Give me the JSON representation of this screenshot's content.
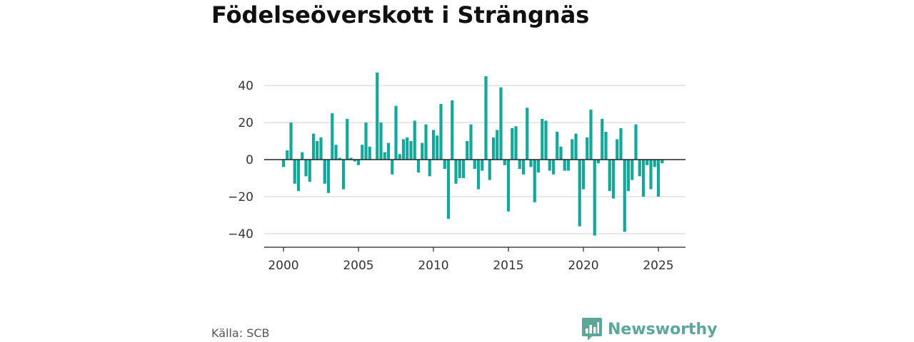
{
  "title": "Födelseöverskott i Strängnäs",
  "source": "Källa: SCB",
  "brand": {
    "name": "Newsworthy",
    "icon": "bar-chart-speech-bubble-icon",
    "color": "#5ba89a"
  },
  "chart_data": {
    "type": "bar",
    "title": "Födelseöverskott i Strängnäs",
    "xlabel": "",
    "ylabel": "",
    "x_range": [
      1999.3,
      2026.7
    ],
    "ylim": [
      -47,
      50
    ],
    "x_ticks": [
      2000,
      2005,
      2010,
      2015,
      2020,
      2025
    ],
    "y_ticks": [
      40,
      20,
      0,
      -20,
      -40
    ],
    "y_tick_labels": [
      "40",
      "20",
      "0",
      "−20",
      "−40"
    ],
    "grid": "horizontal",
    "bar_color": "#14a89b",
    "series": [
      {
        "x": [
          2000.0,
          2000.25,
          2000.5,
          2000.75,
          2001.0,
          2001.25,
          2001.5,
          2001.75,
          2002.0,
          2002.25,
          2002.5,
          2002.75,
          2003.0,
          2003.25,
          2003.5,
          2003.75,
          2004.0,
          2004.25,
          2004.5,
          2004.75,
          2005.0,
          2005.25,
          2005.5,
          2005.75,
          2006.0,
          2006.25,
          2006.5,
          2006.75,
          2007.0,
          2007.25,
          2007.5,
          2007.75,
          2008.0,
          2008.25,
          2008.5,
          2008.75,
          2009.0,
          2009.25,
          2009.5,
          2009.75,
          2010.0,
          2010.25,
          2010.5,
          2010.75,
          2011.0,
          2011.25,
          2011.5,
          2011.75,
          2012.0,
          2012.25,
          2012.5,
          2012.75,
          2013.0,
          2013.25,
          2013.5,
          2013.75,
          2014.0,
          2014.25,
          2014.5,
          2014.75,
          2015.0,
          2015.25,
          2015.5,
          2015.75,
          2016.0,
          2016.25,
          2016.5,
          2016.75,
          2017.0,
          2017.25,
          2017.5,
          2017.75,
          2018.0,
          2018.25,
          2018.5,
          2018.75,
          2019.0,
          2019.25,
          2019.5,
          2019.75,
          2020.0,
          2020.25,
          2020.5,
          2020.75,
          2021.0,
          2021.25,
          2021.5,
          2021.75,
          2022.0,
          2022.25,
          2022.5,
          2022.75,
          2023.0,
          2023.25,
          2023.5,
          2023.75,
          2024.0,
          2024.25,
          2024.5,
          2024.75,
          2025.0,
          2025.25
        ],
        "values": [
          -4,
          5,
          20,
          -13,
          -17,
          4,
          -9,
          -12,
          14,
          10,
          12,
          -13,
          -18,
          25,
          8,
          1,
          -16,
          22,
          1,
          -1,
          -3,
          8,
          20,
          7,
          0,
          47,
          20,
          4,
          9,
          -8,
          29,
          3,
          11,
          12,
          10,
          21,
          -7,
          9,
          19,
          -9,
          16,
          13,
          30,
          -5,
          -32,
          32,
          -13,
          -10,
          -10,
          10,
          19,
          -5,
          -16,
          -6,
          45,
          -11,
          12,
          16,
          39,
          -3,
          -28,
          17,
          18,
          -5,
          -8,
          28,
          -4,
          -23,
          -7,
          22,
          21,
          -6,
          -8,
          15,
          7,
          -6,
          -6,
          11,
          14,
          -36,
          -16,
          12,
          27,
          -41,
          -2,
          22,
          15,
          -17,
          -21,
          11,
          17,
          -39,
          -17,
          -11,
          19,
          -9,
          -20,
          -3,
          -16,
          -4,
          -20,
          -2
        ]
      }
    ]
  }
}
